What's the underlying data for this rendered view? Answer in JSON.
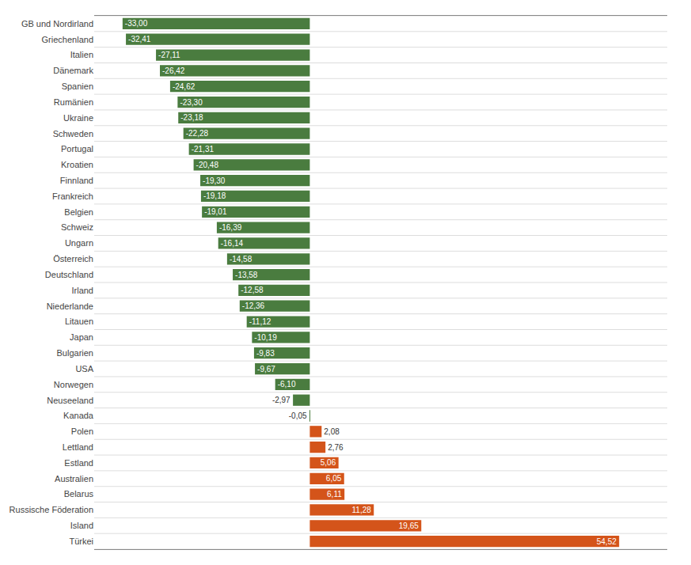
{
  "chart_data": {
    "type": "bar",
    "orientation": "horizontal",
    "categories": [
      "GB und Nordirland",
      "Griechenland",
      "Italien",
      "Dänemark",
      "Spanien",
      "Rumänien",
      "Ukraine",
      "Schweden",
      "Portugal",
      "Kroatien",
      "Finnland",
      "Frankreich",
      "Belgien",
      "Schweiz",
      "Ungarn",
      "Österreich",
      "Deutschland",
      "Irland",
      "Niederlande",
      "Litauen",
      "Japan",
      "Bulgarien",
      "USA",
      "Norwegen",
      "Neuseeland",
      "Kanada",
      "Polen",
      "Lettland",
      "Estland",
      "Australien",
      "Belarus",
      "Russische Föderation",
      "Island",
      "Türkei"
    ],
    "values": [
      -33.0,
      -32.41,
      -27.11,
      -26.42,
      -24.62,
      -23.3,
      -23.18,
      -22.28,
      -21.31,
      -20.48,
      -19.3,
      -19.18,
      -19.01,
      -16.39,
      -16.14,
      -14.58,
      -13.58,
      -12.58,
      -12.36,
      -11.12,
      -10.19,
      -9.83,
      -9.67,
      -6.1,
      -2.97,
      -0.05,
      2.08,
      2.76,
      5.06,
      6.05,
      6.11,
      11.28,
      19.65,
      54.52
    ],
    "value_labels": [
      "-33,00",
      "-32,41",
      "-27,11",
      "-26,42",
      "-24,62",
      "-23,30",
      "-23,18",
      "-22,28",
      "-21,31",
      "-20,48",
      "-19,30",
      "-19,18",
      "-19,01",
      "-16,39",
      "-16,14",
      "-14,58",
      "-13,58",
      "-12,58",
      "-12,36",
      "-11,12",
      "-10,19",
      "-9,83",
      "-9,67",
      "-6,10",
      "-2,97",
      "-0,05",
      "2,08",
      "2,76",
      "5,06",
      "6,05",
      "6,11",
      "11,28",
      "19,65",
      "54,52"
    ],
    "colors": [
      "#4a7c3f",
      "#4a7c3f",
      "#4a7c3f",
      "#4a7c3f",
      "#4a7c3f",
      "#4a7c3f",
      "#4a7c3f",
      "#4a7c3f",
      "#4a7c3f",
      "#4a7c3f",
      "#4a7c3f",
      "#4a7c3f",
      "#4a7c3f",
      "#4a7c3f",
      "#4a7c3f",
      "#4a7c3f",
      "#4a7c3f",
      "#4a7c3f",
      "#4a7c3f",
      "#4a7c3f",
      "#4a7c3f",
      "#4a7c3f",
      "#4a7c3f",
      "#4a7c3f",
      "#4a7c3f",
      "#4a7c3f",
      "#d4541a",
      "#d4541a",
      "#d4541a",
      "#d4541a",
      "#d4541a",
      "#d4541a",
      "#d4541a",
      "#d4541a"
    ],
    "xlim": [
      -38,
      63
    ],
    "data_labels": true,
    "tick_labels": "y",
    "grid": true
  }
}
